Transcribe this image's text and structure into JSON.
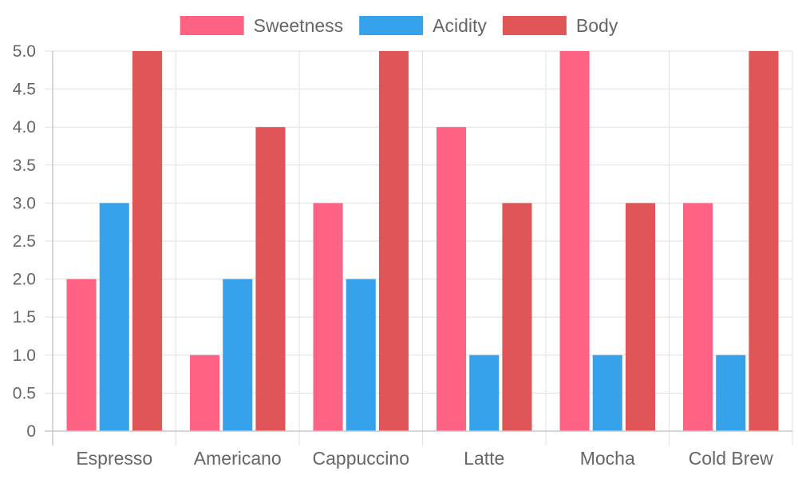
{
  "chart_data": {
    "type": "bar",
    "title": "",
    "xlabel": "",
    "ylabel": "",
    "categories": [
      "Espresso",
      "Americano",
      "Cappuccino",
      "Latte",
      "Mocha",
      "Cold Brew"
    ],
    "series": [
      {
        "name": "Sweetness",
        "color": "#ff6384",
        "values": [
          2,
          1,
          3,
          4,
          5,
          3
        ]
      },
      {
        "name": "Acidity",
        "color": "#36a2eb",
        "values": [
          3,
          2,
          2,
          1,
          1,
          1
        ]
      },
      {
        "name": "Body",
        "color": "#e05558",
        "values": [
          5,
          4,
          5,
          3,
          3,
          5
        ]
      }
    ],
    "ylim": [
      0,
      5
    ],
    "yticks": [
      "0",
      "0.5",
      "1.0",
      "1.5",
      "2.0",
      "2.5",
      "3.0",
      "3.5",
      "4.0",
      "4.5",
      "5.0"
    ],
    "grid": true,
    "legend_position": "top-center"
  }
}
